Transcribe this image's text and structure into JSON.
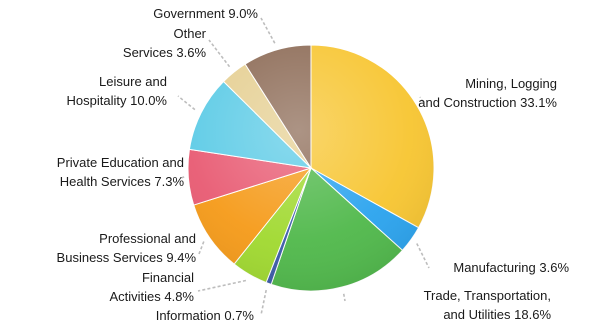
{
  "chart_data": {
    "type": "pie",
    "title": "",
    "slices": [
      {
        "lines": [
          "Mining, Logging",
          "and Construction 33.1%"
        ],
        "value": 33.1,
        "color": "#f7c530"
      },
      {
        "lines": [
          "Manufacturing 3.6%"
        ],
        "value": 3.6,
        "color": "#2aa3ee"
      },
      {
        "lines": [
          "Trade, Transportation,",
          "and Utilities 18.6%"
        ],
        "value": 18.6,
        "color": "#4fb84a"
      },
      {
        "lines": [
          "Information 0.7%"
        ],
        "value": 0.7,
        "color": "#3a5aa8"
      },
      {
        "lines": [
          "Financial",
          "Activities 4.8%"
        ],
        "value": 4.8,
        "color": "#a0d92f"
      },
      {
        "lines": [
          "Professional and",
          "Business Services 9.4%"
        ],
        "value": 9.4,
        "color": "#f59a18"
      },
      {
        "lines": [
          "Private Education and",
          "Health Services 7.3%"
        ],
        "value": 7.3,
        "color": "#e85a72"
      },
      {
        "lines": [
          "Leisure and",
          "Hospitality 10.0%"
        ],
        "value": 10.0,
        "color": "#5ccbe6"
      },
      {
        "lines": [
          "Other",
          "Services 3.6%"
        ],
        "value": 3.6,
        "color": "#e5cf92"
      },
      {
        "lines": [
          "Government 9.0%"
        ],
        "value": 9.0,
        "color": "#8c6a55"
      }
    ]
  }
}
